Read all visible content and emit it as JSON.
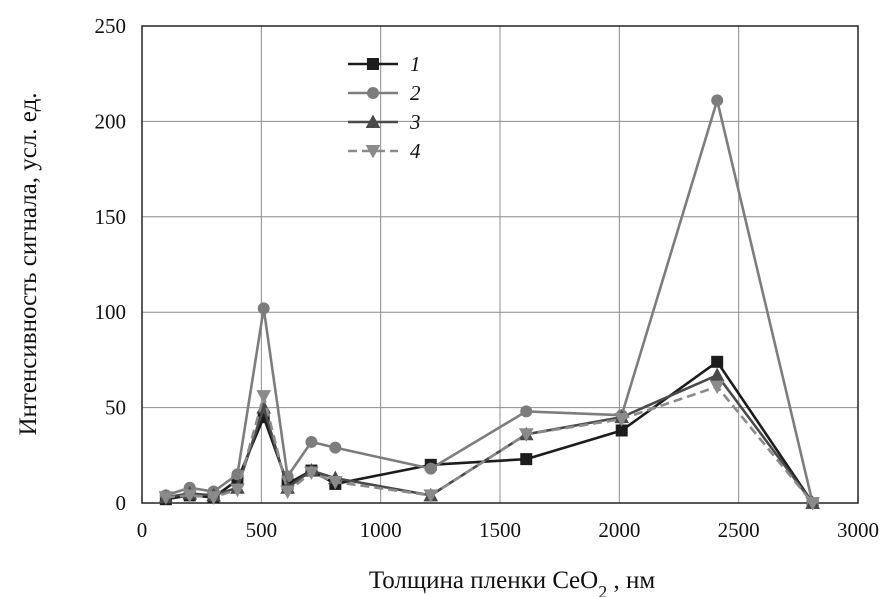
{
  "chart_data": {
    "type": "line",
    "xlabel_main": "Толщина пленки  CeO",
    "xlabel_sub": "2",
    "xlabel_unit": " , нм",
    "ylabel": "Интенсивность сигнала, усл. ед.",
    "xlim": [
      0,
      3000
    ],
    "ylim": [
      0,
      250
    ],
    "xticks": [
      0,
      500,
      1000,
      1500,
      2000,
      2500,
      3000
    ],
    "yticks": [
      0,
      50,
      100,
      150,
      200,
      250
    ],
    "grid": true,
    "legend_position": "top-left-center",
    "series": [
      {
        "name": "1",
        "color": "#1c1c1c",
        "marker": "square",
        "dashed": false,
        "x": [
          100,
          200,
          300,
          400,
          510,
          610,
          710,
          810,
          1210,
          1610,
          2010,
          2410,
          2810
        ],
        "y": [
          2,
          4,
          3,
          12,
          45,
          10,
          17,
          10,
          20,
          23,
          38,
          74,
          0
        ]
      },
      {
        "name": "2",
        "color": "#7d7d7d",
        "marker": "circle",
        "dashed": false,
        "x": [
          100,
          200,
          300,
          400,
          510,
          610,
          710,
          810,
          1210,
          1610,
          2010,
          2410,
          2810
        ],
        "y": [
          4,
          8,
          6,
          15,
          102,
          14,
          32,
          29,
          18,
          48,
          46,
          211,
          0
        ]
      },
      {
        "name": "3",
        "color": "#4a4a4a",
        "marker": "triangle-up",
        "dashed": false,
        "x": [
          100,
          200,
          300,
          400,
          510,
          610,
          710,
          810,
          1210,
          1610,
          2010,
          2410,
          2810
        ],
        "y": [
          3,
          5,
          4,
          8,
          50,
          8,
          17,
          13,
          4,
          36,
          45,
          67,
          0
        ]
      },
      {
        "name": "4",
        "color": "#8a8a8a",
        "marker": "triangle-down",
        "dashed": true,
        "x": [
          100,
          200,
          300,
          400,
          510,
          610,
          710,
          810,
          1210,
          1610,
          2010,
          2410,
          2810
        ],
        "y": [
          3,
          4,
          3,
          7,
          56,
          6,
          16,
          11,
          4,
          36,
          44,
          61,
          0
        ]
      }
    ]
  }
}
